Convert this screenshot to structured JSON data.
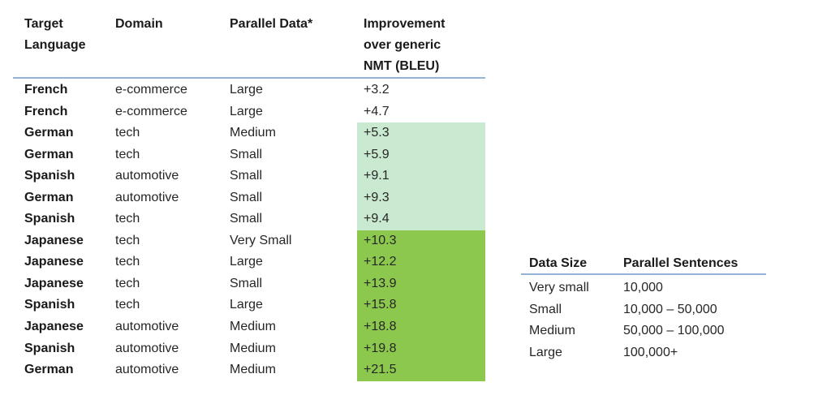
{
  "main_table": {
    "headers": [
      "Target Language",
      "Domain",
      "Parallel Data*",
      "Improvement over generic NMT (BLEU)"
    ],
    "rows": [
      {
        "language": "French",
        "domain": "e-commerce",
        "parallel_data": "Large",
        "improvement": "+3.2",
        "highlight": "none"
      },
      {
        "language": "French",
        "domain": "e-commerce",
        "parallel_data": "Large",
        "improvement": "+4.7",
        "highlight": "none"
      },
      {
        "language": "German",
        "domain": "tech",
        "parallel_data": "Medium",
        "improvement": "+5.3",
        "highlight": "light"
      },
      {
        "language": "German",
        "domain": "tech",
        "parallel_data": "Small",
        "improvement": "+5.9",
        "highlight": "light"
      },
      {
        "language": "Spanish",
        "domain": "automotive",
        "parallel_data": "Small",
        "improvement": "+9.1",
        "highlight": "light"
      },
      {
        "language": "German",
        "domain": "automotive",
        "parallel_data": "Small",
        "improvement": "+9.3",
        "highlight": "light"
      },
      {
        "language": "Spanish",
        "domain": "tech",
        "parallel_data": "Small",
        "improvement": "+9.4",
        "highlight": "light"
      },
      {
        "language": "Japanese",
        "domain": "tech",
        "parallel_data": "Very Small",
        "improvement": "+10.3",
        "highlight": "dark"
      },
      {
        "language": "Japanese",
        "domain": "tech",
        "parallel_data": "Large",
        "improvement": "+12.2",
        "highlight": "dark"
      },
      {
        "language": "Japanese",
        "domain": "tech",
        "parallel_data": "Small",
        "improvement": "+13.9",
        "highlight": "dark"
      },
      {
        "language": "Spanish",
        "domain": "tech",
        "parallel_data": "Large",
        "improvement": "+15.8",
        "highlight": "dark"
      },
      {
        "language": "Japanese",
        "domain": "automotive",
        "parallel_data": "Medium",
        "improvement": "+18.8",
        "highlight": "dark"
      },
      {
        "language": "Spanish",
        "domain": "automotive",
        "parallel_data": "Medium",
        "improvement": "+19.8",
        "highlight": "dark"
      },
      {
        "language": "German",
        "domain": "automotive",
        "parallel_data": "Medium",
        "improvement": "+21.5",
        "highlight": "dark"
      }
    ]
  },
  "legend_table": {
    "headers": [
      "Data Size",
      "Parallel Sentences"
    ],
    "rows": [
      [
        "Very small",
        "10,000"
      ],
      [
        "Small",
        "10,000 – 50,000"
      ],
      [
        "Medium",
        "50,000 – 100,000"
      ],
      [
        "Large",
        "100,000+"
      ]
    ]
  },
  "colors": {
    "highlight_light_green": "#c9ead1",
    "highlight_dark_green": "#8cc84d",
    "header_rule_blue": "#95b3d7"
  }
}
